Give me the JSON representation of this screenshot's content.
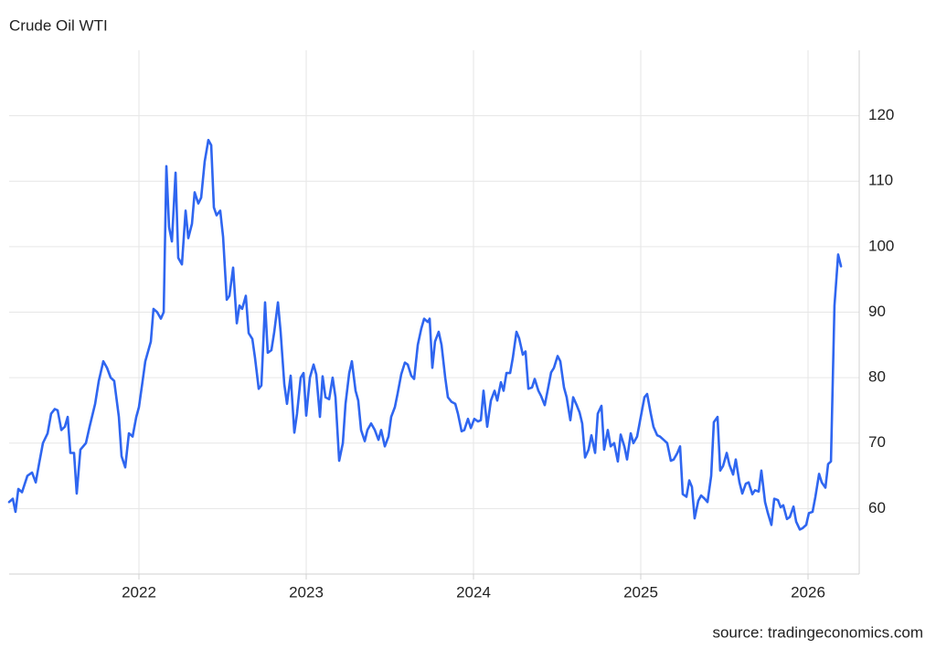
{
  "chart_data": {
    "type": "line",
    "title": "Crude Oil WTI",
    "source": "source: tradingeconomics.com",
    "xlim": [
      2021.224,
      2026.306
    ],
    "xticks": [
      2022,
      2023,
      2024,
      2025,
      2026
    ],
    "ylim": [
      50,
      130
    ],
    "yticks": [
      60,
      70,
      80,
      90,
      100,
      110,
      120
    ],
    "grid": true,
    "x": [
      2021.224,
      2021.246,
      2021.262,
      2021.279,
      2021.301,
      2021.333,
      2021.361,
      2021.383,
      2021.404,
      2021.426,
      2021.454,
      2021.475,
      2021.497,
      2021.514,
      2021.536,
      2021.557,
      2021.574,
      2021.59,
      2021.612,
      2021.628,
      2021.65,
      2021.683,
      2021.705,
      2021.738,
      2021.76,
      2021.787,
      2021.809,
      2021.831,
      2021.852,
      2021.88,
      2021.896,
      2021.918,
      2021.94,
      2021.962,
      2021.984,
      2022.0,
      2022.022,
      2022.038,
      2022.071,
      2022.087,
      2022.109,
      2022.131,
      2022.148,
      2022.164,
      2022.18,
      2022.197,
      2022.219,
      2022.235,
      2022.257,
      2022.279,
      2022.295,
      2022.317,
      2022.333,
      2022.355,
      2022.372,
      2022.393,
      2022.415,
      2022.432,
      2022.448,
      2022.464,
      2022.486,
      2022.503,
      2022.525,
      2022.541,
      2022.563,
      2022.585,
      2022.601,
      2022.617,
      2022.639,
      2022.656,
      2022.678,
      2022.694,
      2022.716,
      2022.732,
      2022.754,
      2022.77,
      2022.792,
      2022.809,
      2022.831,
      2022.847,
      2022.869,
      2022.885,
      2022.907,
      2022.929,
      2022.945,
      2022.967,
      2022.984,
      2023.0,
      2023.022,
      2023.044,
      2023.06,
      2023.082,
      2023.098,
      2023.115,
      2023.137,
      2023.158,
      2023.175,
      2023.197,
      2023.219,
      2023.235,
      2023.257,
      2023.273,
      2023.295,
      2023.311,
      2023.328,
      2023.35,
      2023.366,
      2023.388,
      2023.41,
      2023.432,
      2023.448,
      2023.47,
      2023.492,
      2023.508,
      2023.53,
      2023.546,
      2023.568,
      2023.59,
      2023.607,
      2023.628,
      2023.645,
      2023.667,
      2023.688,
      2023.705,
      2023.727,
      2023.738,
      2023.754,
      2023.77,
      2023.792,
      2023.809,
      2023.831,
      2023.847,
      2023.869,
      2023.891,
      2023.907,
      2023.929,
      2023.945,
      2023.967,
      2023.984,
      2024.005,
      2024.027,
      2024.044,
      2024.06,
      2024.082,
      2024.104,
      2024.126,
      2024.142,
      2024.164,
      2024.18,
      2024.197,
      2024.219,
      2024.235,
      2024.257,
      2024.273,
      2024.295,
      2024.311,
      2024.328,
      2024.35,
      2024.366,
      2024.388,
      2024.404,
      2024.426,
      2024.443,
      2024.464,
      2024.481,
      2024.503,
      2024.519,
      2024.541,
      2024.557,
      2024.579,
      2024.596,
      2024.617,
      2024.634,
      2024.65,
      2024.667,
      2024.688,
      2024.705,
      2024.727,
      2024.743,
      2024.765,
      2024.781,
      2024.803,
      2024.82,
      2024.841,
      2024.863,
      2024.88,
      2024.902,
      2024.918,
      2024.94,
      2024.956,
      2024.978,
      2025.0,
      2025.022,
      2025.038,
      2025.06,
      2025.076,
      2025.098,
      2025.115,
      2025.137,
      2025.158,
      2025.18,
      2025.197,
      2025.219,
      2025.235,
      2025.251,
      2025.273,
      2025.29,
      2025.306,
      2025.322,
      2025.344,
      2025.361,
      2025.382,
      2025.399,
      2025.421,
      2025.437,
      2025.459,
      2025.475,
      2025.492,
      2025.514,
      2025.53,
      2025.552,
      2025.568,
      2025.59,
      2025.607,
      2025.628,
      2025.645,
      2025.667,
      2025.683,
      2025.705,
      2025.721,
      2025.743,
      2025.76,
      2025.781,
      2025.798,
      2025.82,
      2025.836,
      2025.852,
      2025.874,
      2025.891,
      2025.913,
      2025.929,
      2025.951,
      2025.967,
      2025.989,
      2026.005,
      2026.027,
      2026.044,
      2026.066,
      2026.082,
      2026.104,
      2026.12,
      2026.137,
      2026.158,
      2026.18,
      2026.197
    ],
    "series": [
      {
        "name": "Crude Oil WTI",
        "color": "#2f66f0",
        "values": [
          61,
          61.5,
          59.5,
          63,
          62.5,
          65,
          65.5,
          64,
          67,
          70,
          71.5,
          74.5,
          75.2,
          75,
          72,
          72.5,
          74,
          68.5,
          68.5,
          62.3,
          69,
          70,
          72.5,
          76,
          79.5,
          82.5,
          81.5,
          80,
          79.5,
          74,
          68,
          66.3,
          71.5,
          71,
          74,
          75.5,
          79.5,
          82.5,
          85.5,
          90.5,
          90,
          89,
          90,
          112.3,
          103,
          100.8,
          111.3,
          98.3,
          97.3,
          105.5,
          101.3,
          103.5,
          108.3,
          106.6,
          107.5,
          113,
          116.3,
          115.5,
          106,
          104.8,
          105.5,
          101.5,
          91.9,
          92.5,
          96.8,
          88.3,
          91,
          90.5,
          92.5,
          86.8,
          85.9,
          83,
          78.3,
          78.8,
          91.5,
          83.8,
          84.2,
          87,
          91.5,
          87,
          79,
          76,
          80.3,
          71.6,
          74.5,
          80,
          80.7,
          74.2,
          80,
          82,
          80.5,
          74,
          80.2,
          77,
          76.7,
          80,
          77,
          67.3,
          70,
          76,
          80.7,
          82.5,
          78,
          76.5,
          72,
          70.3,
          72,
          73,
          72,
          70.5,
          72,
          69.5,
          71,
          74,
          75.5,
          77.5,
          80.5,
          82.3,
          82,
          80.3,
          79.8,
          85,
          87.5,
          89,
          88.5,
          89,
          81.5,
          85.5,
          87,
          85,
          80,
          77,
          76.3,
          76,
          74.5,
          71.8,
          72,
          73.7,
          72.3,
          73.7,
          73.3,
          73.5,
          78,
          72.5,
          76.5,
          78,
          76.5,
          79.3,
          78,
          80.7,
          80.7,
          83,
          87,
          86,
          83.5,
          84,
          78.3,
          78.5,
          79.8,
          78,
          77.2,
          75.8,
          78,
          80.8,
          81.5,
          83.3,
          82.5,
          78.5,
          77,
          73.5,
          77,
          75.8,
          74.7,
          73,
          67.8,
          69,
          71.2,
          68.5,
          74.5,
          75.7,
          69,
          72,
          69.5,
          70,
          67.2,
          71.3,
          69.5,
          67.5,
          71.5,
          70,
          71,
          74,
          77,
          77.5,
          74.5,
          72.5,
          71.2,
          71,
          70.5,
          70,
          67.3,
          67.5,
          68.5,
          69.5,
          62.2,
          61.8,
          64.3,
          63.3,
          58.5,
          61.2,
          62,
          61.5,
          61,
          65,
          73.2,
          74,
          65.8,
          66.5,
          68.5,
          66.7,
          65.2,
          67.5,
          64,
          62.3,
          63.8,
          64,
          62.2,
          62.8,
          62.6,
          65.8,
          61,
          59.3,
          57.5,
          61.5,
          61.3,
          60.2,
          60.5,
          58.4,
          58.7,
          60.3,
          58,
          56.8,
          57,
          57.5,
          59.3,
          59.5,
          61.8,
          65.3,
          64,
          63.2,
          66.8,
          67.2,
          91,
          98.8,
          97
        ]
      }
    ]
  }
}
